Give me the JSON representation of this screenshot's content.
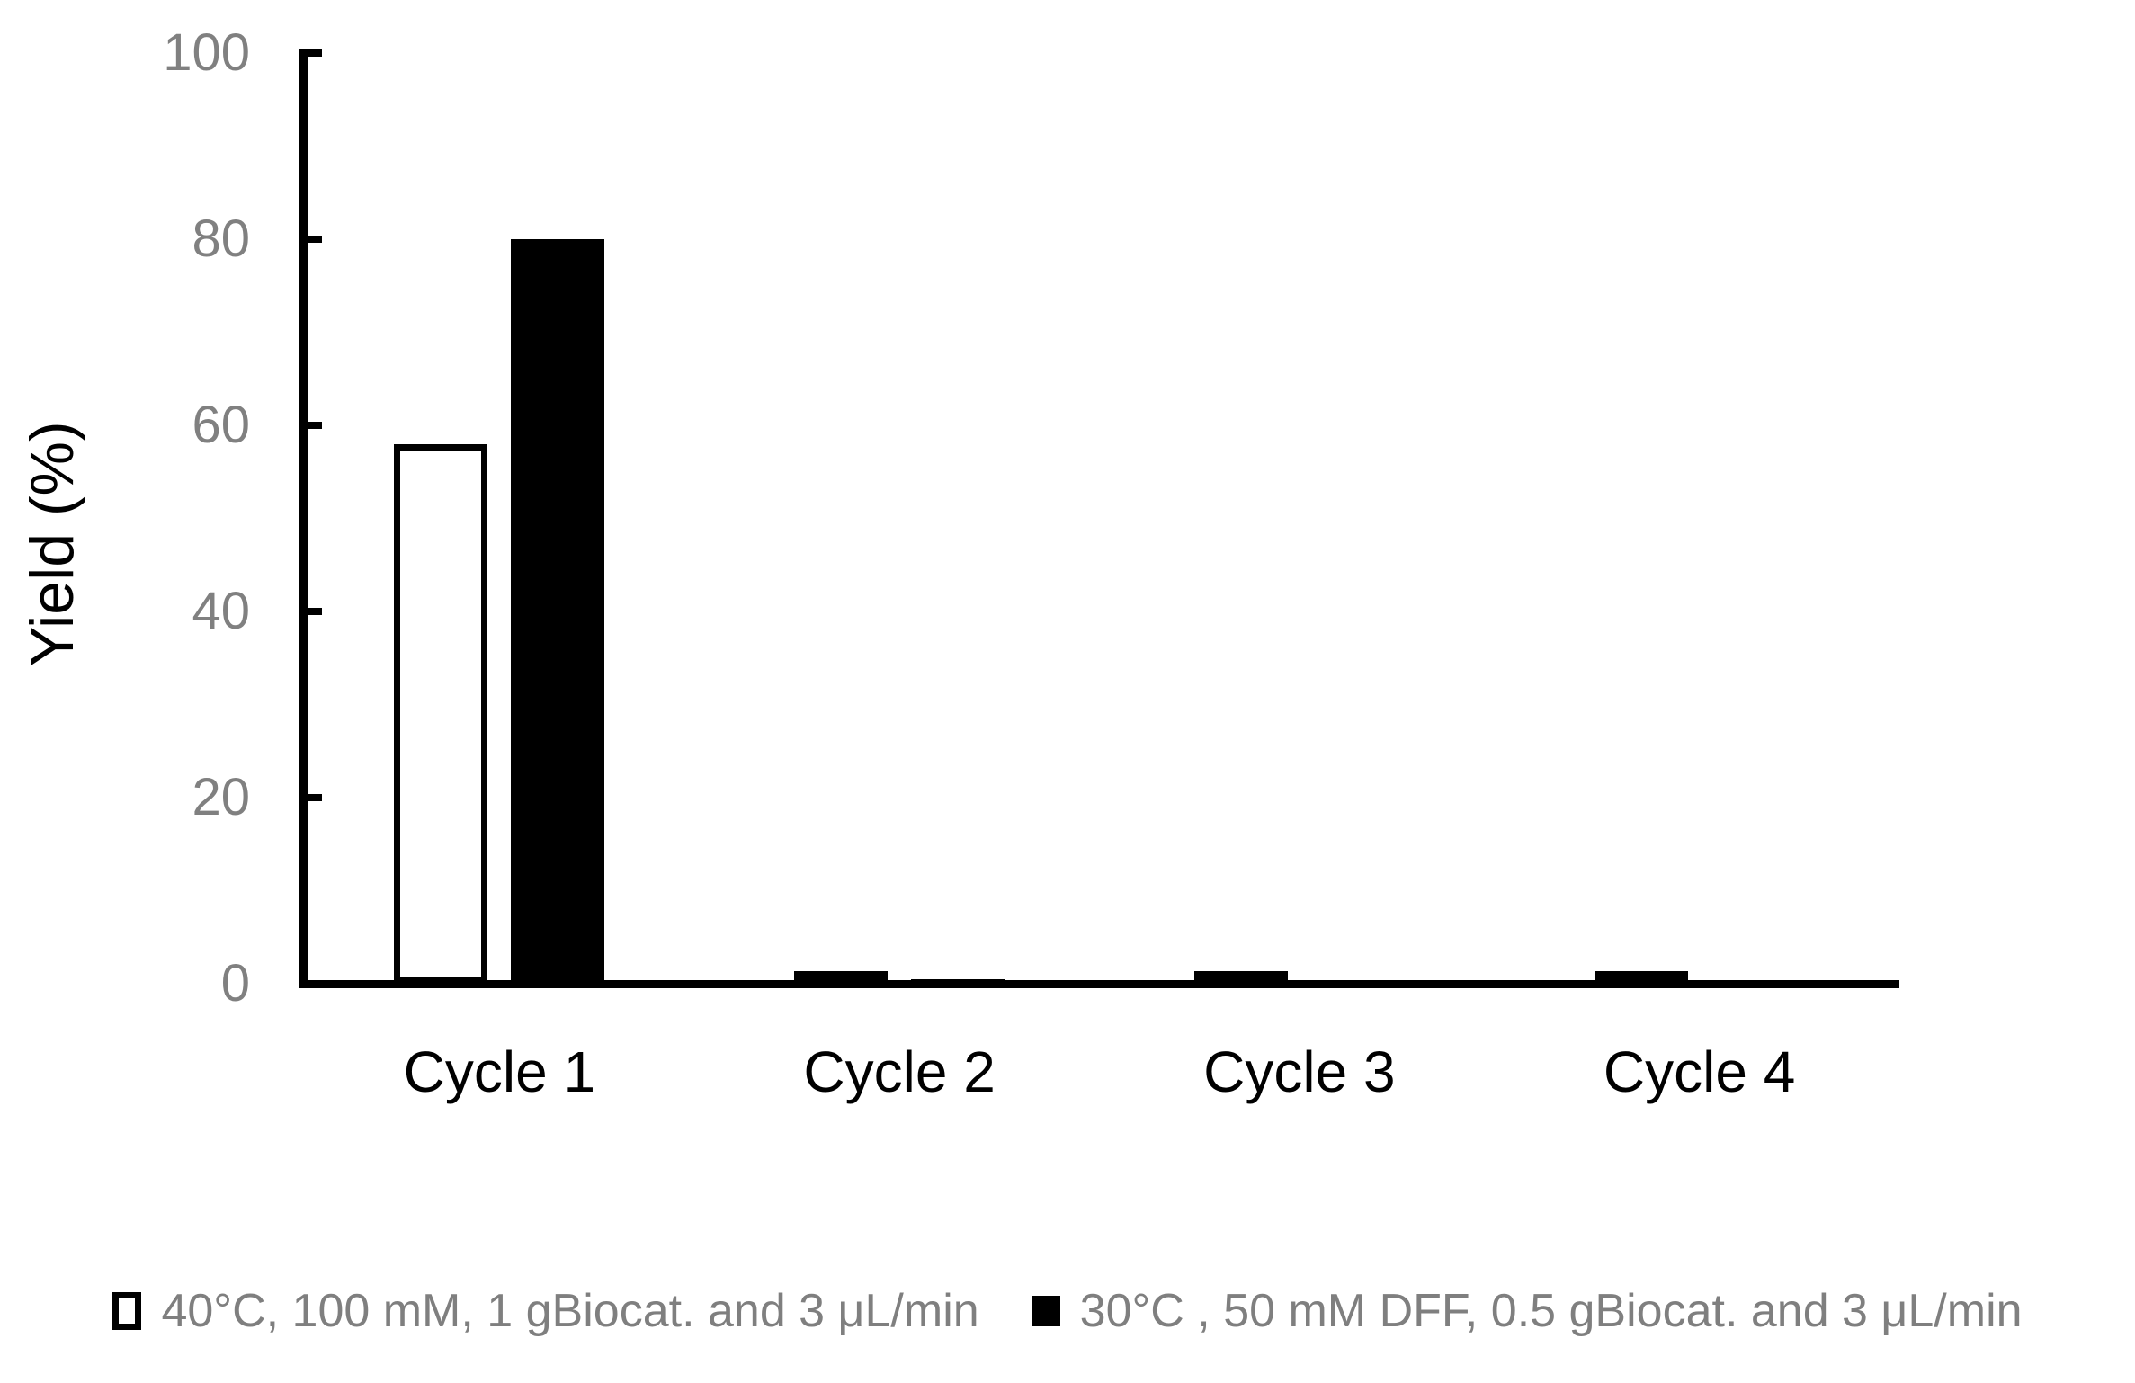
{
  "chart_data": {
    "type": "bar",
    "title": "",
    "xlabel": "",
    "ylabel": "Yield (%)",
    "ylim": [
      0,
      100
    ],
    "yticks": [
      0,
      20,
      40,
      60,
      80,
      100
    ],
    "grid": false,
    "legend_position": "bottom",
    "categories": [
      "Cycle 1",
      "Cycle 2",
      "Cycle 3",
      "Cycle 4"
    ],
    "series": [
      {
        "name": "40°C, 100 mM, 1 gBiocat. and 3 μL/min",
        "style": "outlined",
        "fill": "#ffffff",
        "border": "#000000",
        "values": [
          58,
          1,
          1,
          1
        ]
      },
      {
        "name": "30°C , 50 mM DFF, 0.5 gBiocat. and 3 μL/min",
        "style": "solid",
        "fill": "#000000",
        "border": "#000000",
        "values": [
          80,
          0.5,
          0,
          0
        ]
      }
    ]
  },
  "colors": {
    "background": "#ffffff",
    "axis": "#000000",
    "tick_label": "#808080",
    "category_label": "#000000",
    "axis_title": "#000000",
    "legend_text": "#7f7f7f"
  }
}
